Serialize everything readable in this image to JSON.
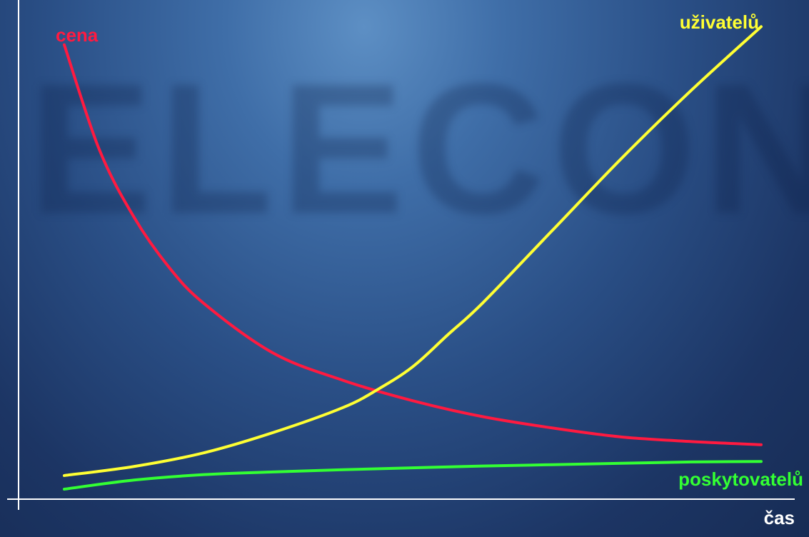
{
  "watermark": "ELECON",
  "chart_data": {
    "type": "line",
    "xlabel": "čas",
    "ylabel": "",
    "xlim": [
      0,
      100
    ],
    "ylim": [
      0,
      100
    ],
    "grid": false,
    "series": [
      {
        "name": "cena",
        "color": "#ff1a40",
        "x": [
          0,
          5,
          10,
          15,
          20,
          30,
          40,
          50,
          60,
          70,
          80,
          90,
          100
        ],
        "y": [
          98,
          75,
          60,
          49,
          41,
          30,
          24,
          19.5,
          16,
          13.5,
          11.5,
          10.5,
          9.8
        ]
      },
      {
        "name": "uživatelů",
        "color": "#ffff33",
        "x": [
          0,
          10,
          20,
          30,
          40,
          45,
          50,
          55,
          60,
          70,
          80,
          90,
          100
        ],
        "y": [
          3,
          5,
          8,
          12.5,
          18,
          22,
          27,
          34,
          41,
          57,
          73,
          88,
          102
        ]
      },
      {
        "name": "poskytovatelů",
        "color": "#33ff33",
        "x": [
          0,
          10,
          20,
          30,
          40,
          50,
          60,
          70,
          80,
          90,
          100
        ],
        "y": [
          0,
          2,
          3.2,
          3.8,
          4.3,
          4.7,
          5.1,
          5.4,
          5.7,
          6.0,
          6.1
        ]
      }
    ]
  }
}
